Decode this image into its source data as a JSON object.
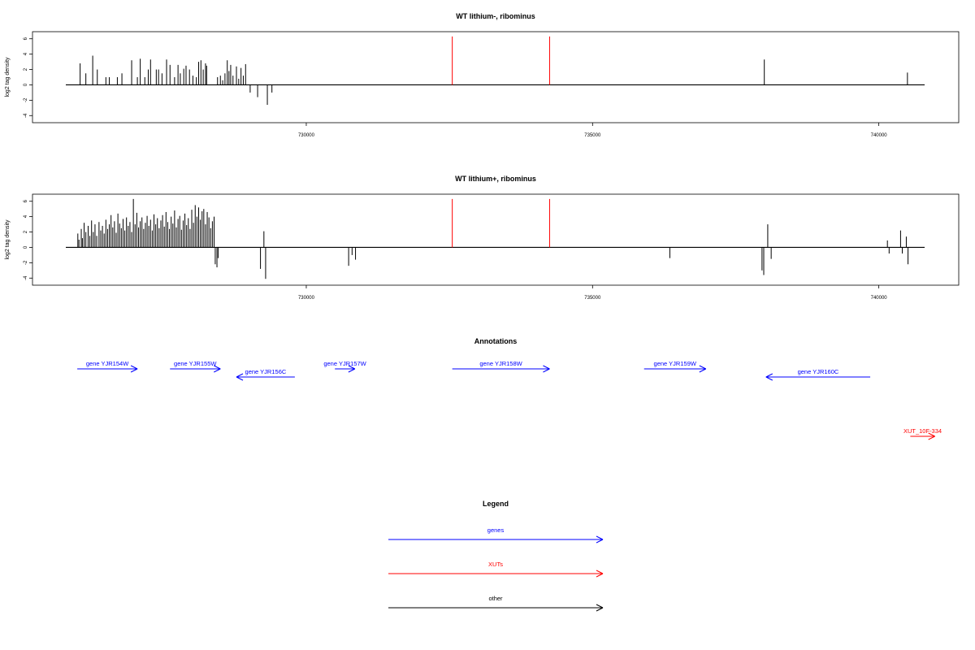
{
  "chart_data": [
    {
      "type": "bar",
      "title": "WT lithium-, ribominus",
      "ylabel": "log2 tag density",
      "xlim": [
        725800,
        740800
      ],
      "ylim": [
        -4.5,
        6.5
      ],
      "x_ticks": [
        730000,
        735000,
        740000
      ],
      "y_ticks": [
        -4,
        -2,
        0,
        2,
        4,
        6
      ],
      "grid": false,
      "series": [
        {
          "color": "#000000",
          "points": [
            [
              726050,
              2.8
            ],
            [
              726150,
              1.5
            ],
            [
              726270,
              3.8
            ],
            [
              726350,
              2.0
            ],
            [
              726500,
              1.0
            ],
            [
              726560,
              1.0
            ],
            [
              726700,
              1.0
            ],
            [
              726780,
              1.5
            ],
            [
              726950,
              3.2
            ],
            [
              727050,
              1.0
            ],
            [
              727100,
              3.4
            ],
            [
              727180,
              1.0
            ],
            [
              727240,
              2.0
            ],
            [
              727280,
              3.3
            ],
            [
              727380,
              2.0
            ],
            [
              727420,
              2.0
            ],
            [
              727480,
              1.5
            ],
            [
              727560,
              3.3
            ],
            [
              727620,
              2.6
            ],
            [
              727700,
              1.0
            ],
            [
              727760,
              2.6
            ],
            [
              727800,
              1.5
            ],
            [
              727860,
              2.1
            ],
            [
              727900,
              2.5
            ],
            [
              727960,
              2.0
            ],
            [
              728020,
              1.2
            ],
            [
              728080,
              1.0
            ],
            [
              728120,
              3.0
            ],
            [
              728160,
              3.2
            ],
            [
              728200,
              2.0
            ],
            [
              728240,
              2.8
            ],
            [
              728260,
              2.5
            ],
            [
              728450,
              1.0
            ],
            [
              728500,
              1.2
            ],
            [
              728540,
              0.6
            ],
            [
              728580,
              1.5
            ],
            [
              728620,
              3.2
            ],
            [
              728650,
              1.8
            ],
            [
              728680,
              2.6
            ],
            [
              728720,
              1.2
            ],
            [
              728780,
              2.4
            ],
            [
              728820,
              0.8
            ],
            [
              728860,
              2.2
            ],
            [
              728900,
              1.2
            ],
            [
              728940,
              2.7
            ],
            [
              729020,
              -1.0
            ],
            [
              729150,
              -1.6
            ],
            [
              729320,
              -2.6
            ],
            [
              729400,
              -1.0
            ],
            [
              738000,
              3.3
            ],
            [
              740500,
              1.6
            ]
          ]
        },
        {
          "color": "#ff0000",
          "points": [
            [
              732550,
              6.3
            ],
            [
              734250,
              6.3
            ]
          ]
        }
      ]
    },
    {
      "type": "bar",
      "title": "WT lithium+, ribominus",
      "ylabel": "log2 tag density",
      "xlim": [
        725800,
        740800
      ],
      "ylim": [
        -4.5,
        6.5
      ],
      "x_ticks": [
        730000,
        735000,
        740000
      ],
      "y_ticks": [
        -4,
        -2,
        0,
        2,
        4,
        6
      ],
      "grid": false,
      "series": [
        {
          "color": "#000000",
          "points": [
            [
              726010,
              1.8
            ],
            [
              726030,
              1.0
            ],
            [
              726070,
              2.4
            ],
            [
              726090,
              1.2
            ],
            [
              726120,
              3.2
            ],
            [
              726150,
              2.0
            ],
            [
              726190,
              2.8
            ],
            [
              726220,
              1.5
            ],
            [
              726250,
              3.5
            ],
            [
              726280,
              2.0
            ],
            [
              726310,
              3.0
            ],
            [
              726340,
              1.5
            ],
            [
              726380,
              3.3
            ],
            [
              726410,
              2.2
            ],
            [
              726440,
              2.8
            ],
            [
              726470,
              1.8
            ],
            [
              726500,
              3.6
            ],
            [
              726530,
              2.4
            ],
            [
              726560,
              3.0
            ],
            [
              726590,
              4.2
            ],
            [
              726620,
              2.6
            ],
            [
              726650,
              3.4
            ],
            [
              726680,
              1.9
            ],
            [
              726710,
              4.4
            ],
            [
              726740,
              3.1
            ],
            [
              726770,
              2.5
            ],
            [
              726800,
              3.7
            ],
            [
              726830,
              2.2
            ],
            [
              726860,
              3.9
            ],
            [
              726890,
              2.8
            ],
            [
              726920,
              3.3
            ],
            [
              726950,
              2.0
            ],
            [
              726980,
              6.3
            ],
            [
              727010,
              3.0
            ],
            [
              727040,
              4.5
            ],
            [
              727070,
              2.6
            ],
            [
              727100,
              3.4
            ],
            [
              727130,
              3.9
            ],
            [
              727160,
              2.4
            ],
            [
              727190,
              3.2
            ],
            [
              727220,
              4.1
            ],
            [
              727250,
              2.8
            ],
            [
              727280,
              3.6
            ],
            [
              727310,
              2.2
            ],
            [
              727340,
              4.3
            ],
            [
              727370,
              3.0
            ],
            [
              727400,
              3.8
            ],
            [
              727430,
              2.5
            ],
            [
              727460,
              3.5
            ],
            [
              727490,
              4.2
            ],
            [
              727520,
              2.7
            ],
            [
              727550,
              4.6
            ],
            [
              727580,
              3.3
            ],
            [
              727610,
              2.4
            ],
            [
              727640,
              4.0
            ],
            [
              727670,
              3.1
            ],
            [
              727700,
              4.8
            ],
            [
              727730,
              2.6
            ],
            [
              727760,
              3.7
            ],
            [
              727790,
              4.1
            ],
            [
              727820,
              2.3
            ],
            [
              727850,
              3.5
            ],
            [
              727880,
              4.4
            ],
            [
              727910,
              2.9
            ],
            [
              727940,
              3.8
            ],
            [
              727970,
              2.4
            ],
            [
              728000,
              4.9
            ],
            [
              728030,
              3.2
            ],
            [
              728060,
              5.5
            ],
            [
              728090,
              4.0
            ],
            [
              728120,
              5.2
            ],
            [
              728150,
              3.6
            ],
            [
              728180,
              4.7
            ],
            [
              728210,
              5.0
            ],
            [
              728240,
              3.0
            ],
            [
              728270,
              4.6
            ],
            [
              728300,
              3.9
            ],
            [
              728330,
              2.5
            ],
            [
              728360,
              3.4
            ],
            [
              728390,
              4.0
            ],
            [
              728410,
              -2.2
            ],
            [
              728440,
              -2.6
            ],
            [
              728460,
              -1.4
            ],
            [
              729200,
              -2.8
            ],
            [
              729260,
              2.1
            ],
            [
              729290,
              -4.1
            ],
            [
              730740,
              -2.4
            ],
            [
              730800,
              -1.0
            ],
            [
              730860,
              -1.6
            ],
            [
              736350,
              -1.4
            ],
            [
              737960,
              -3.0
            ],
            [
              737990,
              -3.6
            ],
            [
              738060,
              3.0
            ],
            [
              738120,
              -1.5
            ],
            [
              740150,
              0.9
            ],
            [
              740180,
              -0.8
            ],
            [
              740380,
              2.2
            ],
            [
              740410,
              -0.8
            ],
            [
              740480,
              1.4
            ],
            [
              740510,
              -2.2
            ]
          ]
        },
        {
          "color": "#ff0000",
          "points": [
            [
              732550,
              6.3
            ],
            [
              734250,
              6.3
            ]
          ]
        }
      ]
    }
  ],
  "annotations": {
    "title": "Annotations",
    "features": [
      {
        "label": "gene YJR154W",
        "start": 726000,
        "end": 727050,
        "strand": "+",
        "row": 0,
        "color": "#0000ff"
      },
      {
        "label": "gene YJR155W",
        "start": 727620,
        "end": 728500,
        "strand": "+",
        "row": 0,
        "color": "#0000ff"
      },
      {
        "label": "gene YJR156C",
        "start": 728780,
        "end": 729800,
        "strand": "-",
        "row": 1,
        "color": "#0000ff"
      },
      {
        "label": "gene YJR157W",
        "start": 730500,
        "end": 730850,
        "strand": "+",
        "row": 0,
        "color": "#0000ff"
      },
      {
        "label": "gene YJR158W",
        "start": 732550,
        "end": 734250,
        "strand": "+",
        "row": 0,
        "color": "#0000ff"
      },
      {
        "label": "gene YJR159W",
        "start": 735900,
        "end": 736980,
        "strand": "+",
        "row": 0,
        "color": "#0000ff"
      },
      {
        "label": "gene YJR160C",
        "start": 738030,
        "end": 739850,
        "strand": "-",
        "row": 1,
        "color": "#0000ff"
      },
      {
        "label": "XUT_10F-334",
        "start": 740550,
        "end": 740980,
        "strand": "+",
        "row": 2,
        "color": "#ff0000"
      }
    ]
  },
  "legend": {
    "title": "Legend",
    "items": [
      {
        "label": "genes",
        "color": "#0000ff"
      },
      {
        "label": "XUTs",
        "color": "#ff0000"
      },
      {
        "label": "other",
        "color": "#000000"
      }
    ]
  }
}
